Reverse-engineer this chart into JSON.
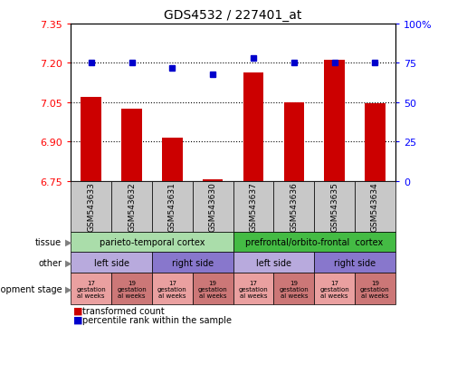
{
  "title": "GDS4532 / 227401_at",
  "samples": [
    "GSM543633",
    "GSM543632",
    "GSM543631",
    "GSM543630",
    "GSM543637",
    "GSM543636",
    "GSM543635",
    "GSM543634"
  ],
  "transformed_count": [
    7.07,
    7.025,
    6.915,
    6.757,
    7.165,
    7.048,
    7.21,
    7.047
  ],
  "percentile_rank": [
    75,
    75,
    72,
    68,
    78,
    75,
    75,
    75
  ],
  "ylim": [
    6.75,
    7.35
  ],
  "y_ticks": [
    6.75,
    6.9,
    7.05,
    7.2,
    7.35
  ],
  "right_ylim": [
    0,
    100
  ],
  "right_ticks": [
    0,
    25,
    50,
    75,
    100
  ],
  "right_tick_labels": [
    "0",
    "25",
    "50",
    "75",
    "100%"
  ],
  "bar_color": "#cc0000",
  "dot_color": "#0000cc",
  "dotted_line_y": [
    6.9,
    7.05,
    7.2
  ],
  "tissue_groups": [
    {
      "label": "parieto-temporal cortex",
      "start": 0,
      "end": 4,
      "color": "#aaddaa"
    },
    {
      "label": "prefrontal/orbito-frontal  cortex",
      "start": 4,
      "end": 8,
      "color": "#44bb44"
    }
  ],
  "other_groups": [
    {
      "label": "left side",
      "start": 0,
      "end": 2,
      "color": "#b8aadd"
    },
    {
      "label": "right side",
      "start": 2,
      "end": 4,
      "color": "#8877cc"
    },
    {
      "label": "left side",
      "start": 4,
      "end": 6,
      "color": "#b8aadd"
    },
    {
      "label": "right side",
      "start": 6,
      "end": 8,
      "color": "#8877cc"
    }
  ],
  "dev_stage_groups": [
    {
      "label": "17\ngestation\nal weeks",
      "start": 0,
      "end": 1,
      "color": "#eaa0a0"
    },
    {
      "label": "19\ngestation\nal weeks",
      "start": 1,
      "end": 2,
      "color": "#cc7777"
    },
    {
      "label": "17\ngestation\nal weeks",
      "start": 2,
      "end": 3,
      "color": "#eaa0a0"
    },
    {
      "label": "19\ngestation\nal weeks",
      "start": 3,
      "end": 4,
      "color": "#cc7777"
    },
    {
      "label": "17\ngestation\nal weeks",
      "start": 4,
      "end": 5,
      "color": "#eaa0a0"
    },
    {
      "label": "19\ngestation\nal weeks",
      "start": 5,
      "end": 6,
      "color": "#cc7777"
    },
    {
      "label": "17\ngestation\nal weeks",
      "start": 6,
      "end": 7,
      "color": "#eaa0a0"
    },
    {
      "label": "19\ngestation\nal weeks",
      "start": 7,
      "end": 8,
      "color": "#cc7777"
    }
  ],
  "row_labels": [
    "tissue",
    "other",
    "development stage"
  ],
  "background_color": "#ffffff",
  "sample_label_bg": "#c8c8c8"
}
